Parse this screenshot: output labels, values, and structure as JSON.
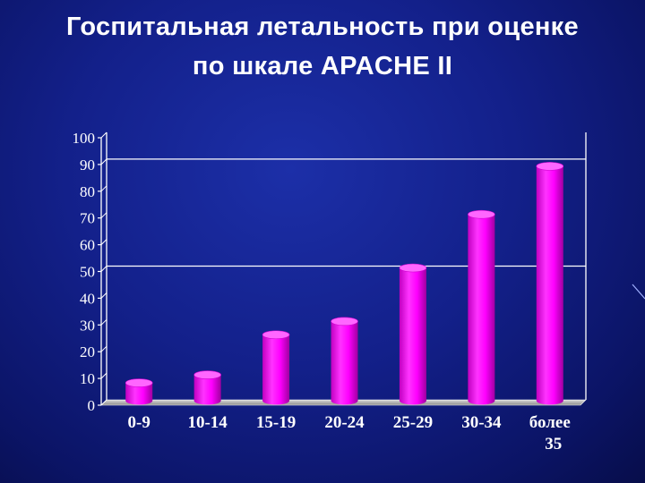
{
  "title": {
    "line1": "Госпитальная летальность при оценке",
    "line2": "по шкале APACHE II"
  },
  "colors": {
    "background": "#13208a",
    "bar": "#ff00ff",
    "bar_dark": "#b300b3",
    "axis": "#ffffff",
    "grid": "#ffffff",
    "text": "#ffffff"
  },
  "chart_data": {
    "type": "bar",
    "title": "Госпитальная летальность при оценке по шкале APACHE II",
    "xlabel": "",
    "ylabel": "",
    "categories": [
      "0-9",
      "10-14",
      "15-19",
      "20-24",
      "25-29",
      "30-34",
      "более 35"
    ],
    "category_lines": [
      [
        "0-9"
      ],
      [
        "10-14"
      ],
      [
        "15-19"
      ],
      [
        "20-24"
      ],
      [
        "25-29"
      ],
      [
        "30-34"
      ],
      [
        "более",
        "35"
      ]
    ],
    "values": [
      7,
      10,
      25,
      30,
      50,
      70,
      88
    ],
    "ylim": [
      0,
      100
    ],
    "yticks": [
      0,
      10,
      20,
      30,
      40,
      50,
      60,
      70,
      80,
      90,
      100
    ],
    "grid": "horizontal lines at 50 and 90",
    "legend": "none"
  }
}
